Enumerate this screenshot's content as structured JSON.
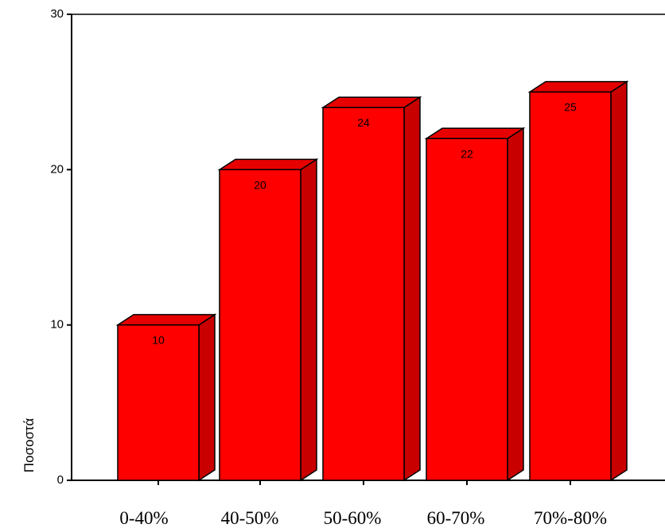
{
  "chart_data": {
    "type": "bar",
    "style": "3d",
    "categories": [
      "0-40%",
      "40-50%",
      "50-60%",
      "60-70%",
      "70%-80%"
    ],
    "values": [
      10,
      20,
      24,
      22,
      25
    ],
    "data_labels": [
      "10",
      "20",
      "24",
      "22",
      "25"
    ],
    "title": "",
    "xlabel": "",
    "ylabel": "Ποσοστά",
    "ylim": [
      0,
      30
    ],
    "yticks": [
      "0",
      "10",
      "20",
      "30"
    ],
    "grid": false,
    "legend": "none",
    "colors": {
      "bar_front": "#ff0000",
      "bar_top": "#e60000",
      "bar_side": "#c80000",
      "outline": "#000000"
    }
  }
}
